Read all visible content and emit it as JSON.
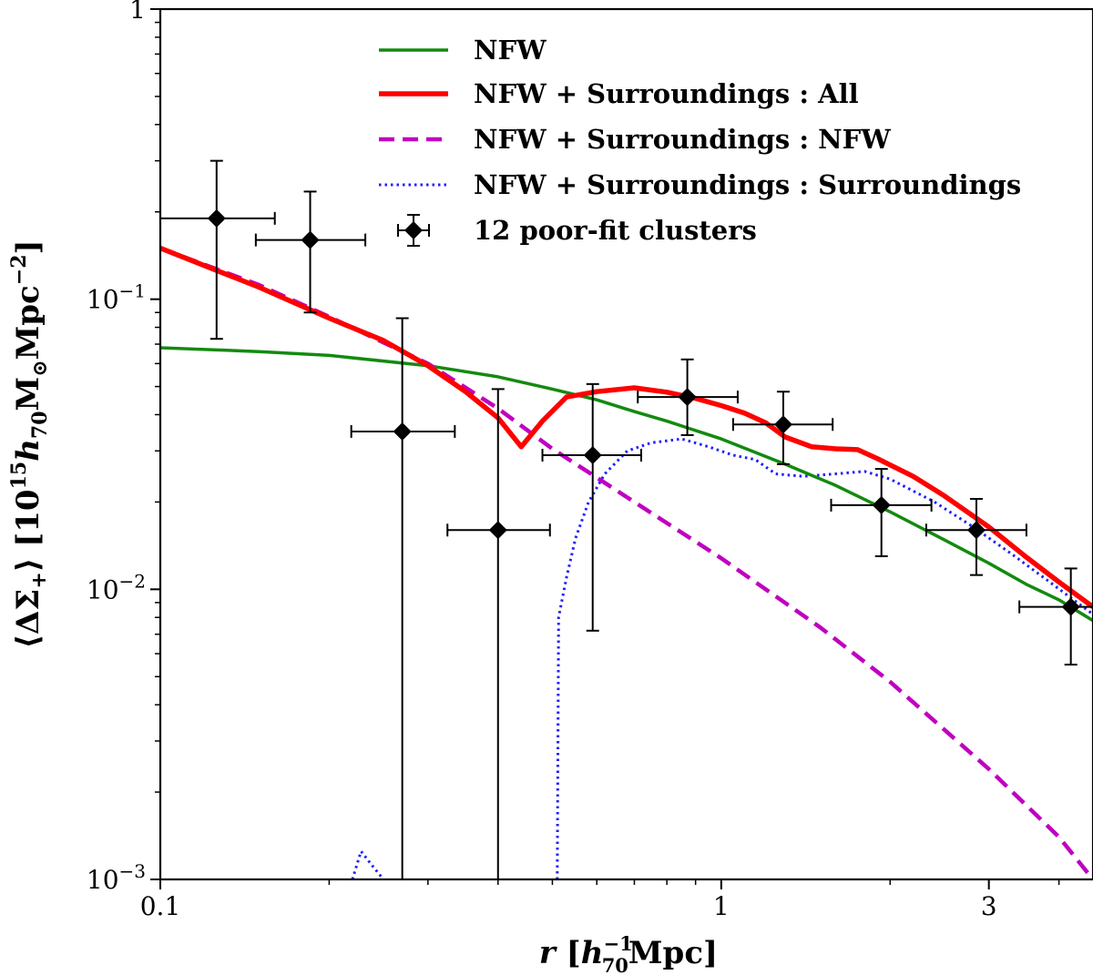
{
  "chart_data": {
    "type": "line",
    "xscale": "log",
    "yscale": "log",
    "xlim": [
      0.1,
      4.6
    ],
    "ylim": [
      0.001,
      1
    ],
    "xticks": [
      {
        "value": 0.1,
        "label": "0.1"
      },
      {
        "value": 1,
        "label": "1"
      },
      {
        "value": 3,
        "label": "3"
      }
    ],
    "yticks": [
      {
        "value": 0.001,
        "base": "10",
        "exp": "−3"
      },
      {
        "value": 0.01,
        "base": "10",
        "exp": "−2"
      },
      {
        "value": 0.1,
        "base": "10",
        "exp": "−1"
      },
      {
        "value": 1,
        "label": "1"
      }
    ],
    "xlabel": {
      "var": "r",
      "open": " [",
      "h": "h",
      "sub": "70",
      "sup": "−1",
      "unit": "Mpc]"
    },
    "ylabel": {
      "lhs": "⟨ΔΣ",
      "lhs_sub": "+",
      "rhs": "⟩ [10",
      "sup": "15",
      "h": "h",
      "h_sub": "70",
      "m": "M",
      "m_sub": "⊙",
      "unit": "Mpc",
      "unit_sup": "−2",
      "close": "]"
    },
    "legend_position": "top-right",
    "series": [
      {
        "name": "NFW",
        "label": "NFW",
        "color": "#138a0f",
        "style": "solid",
        "x": [
          0.1,
          0.15,
          0.2,
          0.3,
          0.4,
          0.5,
          0.6,
          0.7,
          0.8,
          1.0,
          1.3,
          1.6,
          2.0,
          2.5,
          3.0,
          3.5,
          4.0,
          4.6
        ],
        "y": [
          0.068,
          0.066,
          0.064,
          0.059,
          0.054,
          0.049,
          0.045,
          0.041,
          0.038,
          0.033,
          0.027,
          0.0228,
          0.0185,
          0.0148,
          0.0123,
          0.0104,
          0.0092,
          0.0078
        ]
      },
      {
        "name": "NFW + Surroundings : All",
        "label": "NFW + Surroundings : All",
        "color": "#ff0000",
        "style": "solid",
        "x": [
          0.1,
          0.15,
          0.2,
          0.25,
          0.3,
          0.35,
          0.4,
          0.44,
          0.48,
          0.53,
          0.6,
          0.7,
          0.8,
          0.9,
          1.0,
          1.1,
          1.2,
          1.3,
          1.45,
          1.6,
          1.75,
          1.9,
          2.2,
          2.5,
          3.0,
          3.5,
          4.0,
          4.6
        ],
        "y": [
          0.15,
          0.11,
          0.086,
          0.072,
          0.059,
          0.048,
          0.039,
          0.031,
          0.038,
          0.046,
          0.048,
          0.0495,
          0.0478,
          0.0455,
          0.043,
          0.0405,
          0.0375,
          0.0335,
          0.031,
          0.0305,
          0.0303,
          0.0282,
          0.0245,
          0.021,
          0.0164,
          0.0129,
          0.0106,
          0.0087
        ]
      },
      {
        "name": "NFW + Surroundings : NFW",
        "label": "NFW + Surroundings : NFW",
        "color": "#c000c0",
        "style": "dashed",
        "x": [
          0.1,
          0.15,
          0.2,
          0.3,
          0.4,
          0.5,
          0.7,
          1.0,
          1.5,
          2.0,
          3.0,
          4.0,
          4.6
        ],
        "y": [
          0.15,
          0.112,
          0.087,
          0.06,
          0.042,
          0.0305,
          0.02,
          0.0128,
          0.0074,
          0.0048,
          0.0024,
          0.0014,
          0.001
        ]
      },
      {
        "name": "NFW + Surroundings : Surroundings",
        "label": "NFW + Surroundings : Surroundings",
        "color": "#1f1fff",
        "style": "dotted",
        "segments": [
          {
            "x": [
              0.22,
              0.228,
              0.24,
              0.25
            ],
            "y": [
              0.001,
              0.00125,
              0.0011,
              0.001
            ]
          },
          {
            "x": [
              0.51,
              0.513,
              0.53,
              0.55,
              0.58,
              0.62,
              0.68,
              0.75,
              0.85,
              0.95,
              1.05,
              1.15,
              1.25,
              1.4,
              1.6,
              1.8,
              2.0,
              2.4,
              2.8,
              3.3,
              3.8,
              4.6
            ],
            "y": [
              0.001,
              0.008,
              0.011,
              0.015,
              0.02,
              0.025,
              0.03,
              0.032,
              0.033,
              0.031,
              0.029,
              0.028,
              0.025,
              0.0245,
              0.025,
              0.0255,
              0.024,
              0.02,
              0.0165,
              0.0132,
              0.0108,
              0.0082
            ]
          }
        ]
      }
    ],
    "points": {
      "name": "12 poor-fit clusters",
      "label": "12 poor-fit clusters",
      "color": "#000000",
      "marker": "diamond",
      "data": [
        {
          "x": 0.126,
          "y": 0.19,
          "xerr": [
            0.1,
            0.16
          ],
          "yerr": [
            0.073,
            0.3
          ]
        },
        {
          "x": 0.185,
          "y": 0.16,
          "xerr": [
            0.148,
            0.232
          ],
          "yerr": [
            0.09,
            0.235
          ]
        },
        {
          "x": 0.27,
          "y": 0.035,
          "xerr": [
            0.219,
            0.335
          ],
          "yerr": [
            0.001,
            0.086
          ]
        },
        {
          "x": 0.4,
          "y": 0.016,
          "xerr": [
            0.325,
            0.495
          ],
          "yerr": [
            0.001,
            0.049
          ]
        },
        {
          "x": 0.59,
          "y": 0.029,
          "xerr": [
            0.48,
            0.72
          ],
          "yerr": [
            0.0072,
            0.051
          ]
        },
        {
          "x": 0.87,
          "y": 0.046,
          "xerr": [
            0.71,
            1.07
          ],
          "yerr": [
            0.034,
            0.062
          ]
        },
        {
          "x": 1.29,
          "y": 0.037,
          "xerr": [
            1.05,
            1.58
          ],
          "yerr": [
            0.027,
            0.048
          ]
        },
        {
          "x": 1.93,
          "y": 0.0195,
          "xerr": [
            1.57,
            2.37
          ],
          "yerr": [
            0.013,
            0.026
          ]
        },
        {
          "x": 2.85,
          "y": 0.016,
          "xerr": [
            2.32,
            3.5
          ],
          "yerr": [
            0.0112,
            0.0205
          ]
        },
        {
          "x": 4.2,
          "y": 0.0087,
          "xerr": [
            3.4,
            4.6
          ],
          "yerr": [
            0.0055,
            0.0118
          ]
        }
      ]
    }
  }
}
